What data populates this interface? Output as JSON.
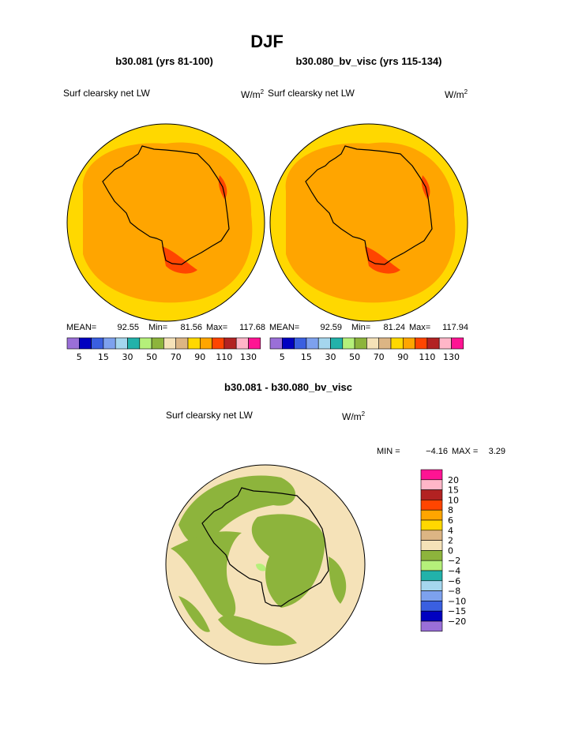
{
  "title": "DJF",
  "panels": [
    {
      "title": "b30.081 (yrs 81-100)",
      "variable": "Surf clearsky net LW",
      "units": "W/m",
      "units_sup": "2",
      "stats": {
        "mean_label": "MEAN=",
        "mean": "92.55",
        "min_label": "Min=",
        "min": "81.56",
        "max_label": "Max=",
        "max": "117.68"
      }
    },
    {
      "title": "b30.080_bv_visc (yrs 115-134)",
      "variable": "Surf clearsky net LW",
      "units": "W/m",
      "units_sup": "2",
      "stats": {
        "mean_label": "MEAN=",
        "mean": "92.59",
        "min_label": "Min=",
        "min": "81.24",
        "max_label": "Max=",
        "max": "117.94"
      }
    }
  ],
  "colorbar": {
    "labels": [
      "5",
      "15",
      "30",
      "50",
      "70",
      "90",
      "110",
      "130"
    ],
    "colors": [
      "#9a6fd8",
      "#0000c0",
      "#3a5fe0",
      "#7da1ee",
      "#a5d6ee",
      "#22b2aa",
      "#b5f07a",
      "#8db43c",
      "#f5e2b8",
      "#dcb584",
      "#ffd800",
      "#ffa500",
      "#ff4500",
      "#b22222",
      "#ffb6c8",
      "#ff1493"
    ]
  },
  "difference": {
    "title": "b30.081 - b30.080_bv_visc",
    "variable": "Surf clearsky net LW",
    "units": "W/m",
    "units_sup": "2",
    "min_label": "MIN =",
    "min": "−4.16",
    "max_label": "MAX =",
    "max": "3.29",
    "colorbar": {
      "labels": [
        "20",
        "15",
        "10",
        "8",
        "6",
        "4",
        "2",
        "0",
        "−2",
        "−4",
        "−6",
        "−8",
        "−10",
        "−15",
        "−20"
      ],
      "colors": [
        "#ff1493",
        "#ffb6c8",
        "#b22222",
        "#ff4500",
        "#ffa500",
        "#ffd800",
        "#dcb584",
        "#f5e2b8",
        "#8db43c",
        "#b5f07a",
        "#22b2aa",
        "#a5d6ee",
        "#7da1ee",
        "#3a5fe0",
        "#0000c0",
        "#9a6fd8"
      ]
    }
  }
}
